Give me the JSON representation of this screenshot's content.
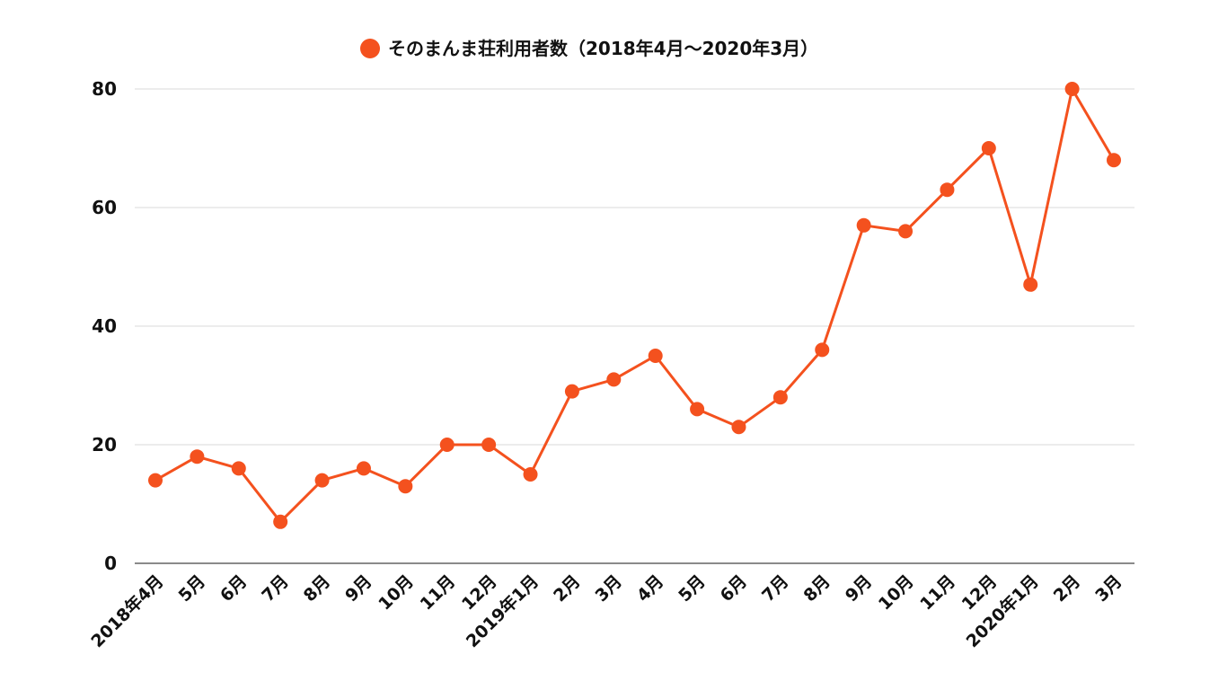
{
  "chart_data": {
    "type": "line",
    "title": "",
    "xlabel": "",
    "ylabel": "",
    "legend_position": "top-center",
    "grid": true,
    "ylim": [
      0,
      80
    ],
    "yticks": [
      "0",
      "20",
      "40",
      "60",
      "80"
    ],
    "categories": [
      "2018年4月",
      "5月",
      "6月",
      "7月",
      "8月",
      "9月",
      "10月",
      "11月",
      "12月",
      "2019年1月",
      "2月",
      "3月",
      "4月",
      "5月",
      "6月",
      "7月",
      "8月",
      "9月",
      "10月",
      "11月",
      "12月",
      "2020年1月",
      "2月",
      "3月"
    ],
    "series": [
      {
        "name": "そのまんま荘利用者数（2018年4月〜2020年3月）",
        "color": "#f4511e",
        "values": [
          14,
          18,
          16,
          7,
          14,
          16,
          13,
          20,
          20,
          15,
          29,
          31,
          35,
          26,
          23,
          28,
          36,
          57,
          56,
          63,
          70,
          47,
          80,
          68
        ]
      }
    ]
  }
}
